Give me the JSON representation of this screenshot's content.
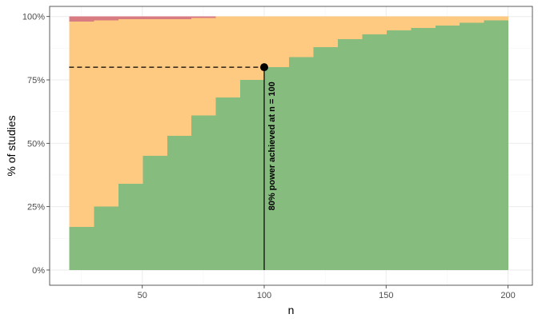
{
  "chart_data": {
    "type": "area",
    "title": "",
    "xlabel": "n",
    "ylabel": "% of studies",
    "xlim": [
      12,
      210
    ],
    "ylim": [
      -0.06,
      1.04
    ],
    "x_ticks": [
      50,
      100,
      150,
      200
    ],
    "x_tick_labels": [
      "50",
      "100",
      "150",
      "200"
    ],
    "y_ticks": [
      0,
      0.25,
      0.5,
      0.75,
      1.0
    ],
    "y_tick_labels": [
      "0%",
      "25%",
      "50%",
      "75%",
      "100%"
    ],
    "grid": true,
    "legend": "none",
    "colors": {
      "green": "#86bc7e",
      "orange": "#fec981",
      "red": "#d97c82",
      "grid_major": "#ebebeb",
      "grid_minor": "#f5f5f5",
      "border": "#333333"
    },
    "x_steps": [
      20,
      30,
      40,
      50,
      60,
      70,
      80,
      90,
      100,
      110,
      120,
      130,
      140,
      150,
      160,
      170,
      180,
      190,
      200
    ],
    "series": [
      {
        "color": "green",
        "values": [
          0.17,
          0.25,
          0.34,
          0.45,
          0.53,
          0.61,
          0.68,
          0.75,
          0.8,
          0.84,
          0.88,
          0.91,
          0.93,
          0.945,
          0.955,
          0.965,
          0.975,
          0.985
        ]
      },
      {
        "color": "orange",
        "cumulative_top": [
          0.98,
          0.985,
          0.99,
          0.99,
          0.99,
          0.995,
          1.0,
          1.0,
          1.0,
          1.0,
          1.0,
          1.0,
          1.0,
          1.0,
          1.0,
          1.0,
          1.0,
          1.0
        ]
      },
      {
        "color": "red",
        "cumulative_top": [
          1.0,
          1.0,
          1.0,
          1.0,
          1.0,
          1.0,
          1.0,
          1.0,
          1.0,
          1.0,
          1.0,
          1.0,
          1.0,
          1.0,
          1.0,
          1.0,
          1.0,
          1.0
        ]
      }
    ],
    "annotation": {
      "x": 100,
      "y": 0.8,
      "label": "80% power achieved at n = 100"
    }
  }
}
